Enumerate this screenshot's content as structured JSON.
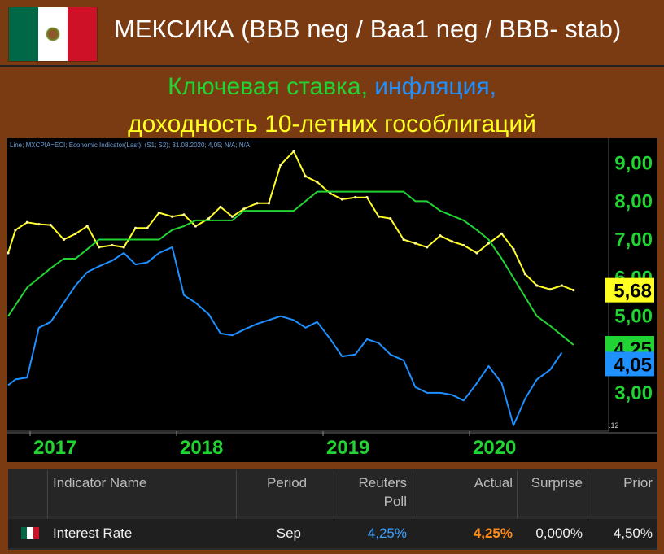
{
  "header": {
    "title": "МЕКСИКА (BBB neg / Baa1 neg / BBB- stab)",
    "subtitle_part1": "Ключевая ставка,",
    "subtitle_part2": "инфляция,",
    "subtitle_part3": "доходность 10-летних гособлигаций"
  },
  "colors": {
    "key_rate": "#22d433",
    "inflation": "#1e90ff",
    "bond_yield": "#ffff22",
    "background": "#7a3b12",
    "actual_orange": "#ff8c1a"
  },
  "chart_data": {
    "type": "line",
    "info_text": "Line; MXCPIA=ECI; Economic Indicator(Last); (S1; S2); 31.08.2020; 4,05; N/A; N/A",
    "x_labels": [
      "2017",
      "2018",
      "2019",
      "2020"
    ],
    "y_ticks": [
      "9,00",
      "8,00",
      "7,00",
      "6,00",
      "5,00",
      "4,00",
      "3,00"
    ],
    "y_values": [
      9,
      8,
      7,
      6,
      5,
      4,
      3
    ],
    "ylim": [
      2.0,
      9.6
    ],
    "xlim": [
      2016.85,
      2020.95
    ],
    "corner_label": ".12",
    "grid": false,
    "last_value_labels": [
      "5,68",
      "4,25",
      "4,05"
    ],
    "series": [
      {
        "color": "#ffff22",
        "markers": true,
        "points": [
          [
            2016.85,
            6.65
          ],
          [
            2016.9,
            7.25
          ],
          [
            2016.98,
            7.45
          ],
          [
            2017.06,
            7.4
          ],
          [
            2017.14,
            7.38
          ],
          [
            2017.23,
            7.0
          ],
          [
            2017.31,
            7.15
          ],
          [
            2017.39,
            7.35
          ],
          [
            2017.47,
            6.8
          ],
          [
            2017.56,
            6.85
          ],
          [
            2017.64,
            6.8
          ],
          [
            2017.72,
            7.3
          ],
          [
            2017.8,
            7.3
          ],
          [
            2017.88,
            7.7
          ],
          [
            2017.97,
            7.6
          ],
          [
            2018.05,
            7.65
          ],
          [
            2018.13,
            7.35
          ],
          [
            2018.22,
            7.55
          ],
          [
            2018.3,
            7.85
          ],
          [
            2018.38,
            7.6
          ],
          [
            2018.46,
            7.8
          ],
          [
            2018.55,
            7.95
          ],
          [
            2018.63,
            7.95
          ],
          [
            2018.71,
            8.95
          ],
          [
            2018.8,
            9.3
          ],
          [
            2018.88,
            8.65
          ],
          [
            2018.96,
            8.5
          ],
          [
            2019.05,
            8.2
          ],
          [
            2019.13,
            8.05
          ],
          [
            2019.22,
            8.1
          ],
          [
            2019.3,
            8.1
          ],
          [
            2019.38,
            7.6
          ],
          [
            2019.46,
            7.55
          ],
          [
            2019.55,
            7.0
          ],
          [
            2019.63,
            6.9
          ],
          [
            2019.71,
            6.8
          ],
          [
            2019.8,
            7.1
          ],
          [
            2019.88,
            6.95
          ],
          [
            2019.96,
            6.85
          ],
          [
            2020.05,
            6.65
          ],
          [
            2020.13,
            6.9
          ],
          [
            2020.22,
            7.15
          ],
          [
            2020.3,
            6.75
          ],
          [
            2020.38,
            6.1
          ],
          [
            2020.46,
            5.8
          ],
          [
            2020.55,
            5.7
          ],
          [
            2020.63,
            5.8
          ],
          [
            2020.71,
            5.68
          ]
        ]
      },
      {
        "color": "#22d433",
        "markers": false,
        "points": [
          [
            2016.85,
            5.0
          ],
          [
            2016.98,
            5.75
          ],
          [
            2017.06,
            6.0
          ],
          [
            2017.14,
            6.25
          ],
          [
            2017.23,
            6.5
          ],
          [
            2017.31,
            6.5
          ],
          [
            2017.39,
            6.75
          ],
          [
            2017.47,
            7.0
          ],
          [
            2017.88,
            7.0
          ],
          [
            2017.97,
            7.25
          ],
          [
            2018.05,
            7.35
          ],
          [
            2018.13,
            7.5
          ],
          [
            2018.38,
            7.5
          ],
          [
            2018.46,
            7.75
          ],
          [
            2018.8,
            7.75
          ],
          [
            2018.96,
            8.25
          ],
          [
            2019.55,
            8.25
          ],
          [
            2019.63,
            8.0
          ],
          [
            2019.71,
            8.0
          ],
          [
            2019.8,
            7.75
          ],
          [
            2019.96,
            7.5
          ],
          [
            2020.05,
            7.25
          ],
          [
            2020.13,
            7.0
          ],
          [
            2020.22,
            6.5
          ],
          [
            2020.3,
            6.0
          ],
          [
            2020.38,
            5.5
          ],
          [
            2020.46,
            5.0
          ],
          [
            2020.55,
            4.75
          ],
          [
            2020.63,
            4.5
          ],
          [
            2020.71,
            4.25
          ]
        ]
      },
      {
        "color": "#1e90ff",
        "markers": false,
        "points": [
          [
            2016.85,
            3.2
          ],
          [
            2016.9,
            3.35
          ],
          [
            2016.98,
            3.4
          ],
          [
            2017.06,
            4.7
          ],
          [
            2017.14,
            4.85
          ],
          [
            2017.23,
            5.35
          ],
          [
            2017.31,
            5.8
          ],
          [
            2017.39,
            6.15
          ],
          [
            2017.47,
            6.3
          ],
          [
            2017.56,
            6.45
          ],
          [
            2017.64,
            6.65
          ],
          [
            2017.72,
            6.35
          ],
          [
            2017.8,
            6.4
          ],
          [
            2017.88,
            6.65
          ],
          [
            2017.97,
            6.8
          ],
          [
            2018.05,
            5.55
          ],
          [
            2018.13,
            5.35
          ],
          [
            2018.22,
            5.05
          ],
          [
            2018.3,
            4.55
          ],
          [
            2018.38,
            4.5
          ],
          [
            2018.46,
            4.65
          ],
          [
            2018.55,
            4.8
          ],
          [
            2018.63,
            4.9
          ],
          [
            2018.71,
            5.0
          ],
          [
            2018.8,
            4.9
          ],
          [
            2018.88,
            4.7
          ],
          [
            2018.96,
            4.85
          ],
          [
            2019.05,
            4.4
          ],
          [
            2019.13,
            3.95
          ],
          [
            2019.22,
            4.0
          ],
          [
            2019.3,
            4.4
          ],
          [
            2019.38,
            4.3
          ],
          [
            2019.46,
            4.0
          ],
          [
            2019.55,
            3.85
          ],
          [
            2019.63,
            3.15
          ],
          [
            2019.71,
            3.0
          ],
          [
            2019.8,
            3.0
          ],
          [
            2019.88,
            2.95
          ],
          [
            2019.96,
            2.8
          ],
          [
            2020.05,
            3.25
          ],
          [
            2020.13,
            3.7
          ],
          [
            2020.22,
            3.25
          ],
          [
            2020.3,
            2.15
          ],
          [
            2020.38,
            2.85
          ],
          [
            2020.46,
            3.35
          ],
          [
            2020.55,
            3.6
          ],
          [
            2020.63,
            4.05
          ]
        ]
      }
    ]
  },
  "table": {
    "headers": {
      "indicator": "Indicator Name",
      "period": "Period",
      "poll_line1": "Reuters",
      "poll_line2": "Poll",
      "actual": "Actual",
      "surprise": "Surprise",
      "prior": "Prior"
    },
    "row": {
      "indicator": "Interest Rate",
      "period": "Sep",
      "poll": "4,25%",
      "actual": "4,25%",
      "surprise": "0,000%",
      "prior": "4,50%"
    }
  }
}
